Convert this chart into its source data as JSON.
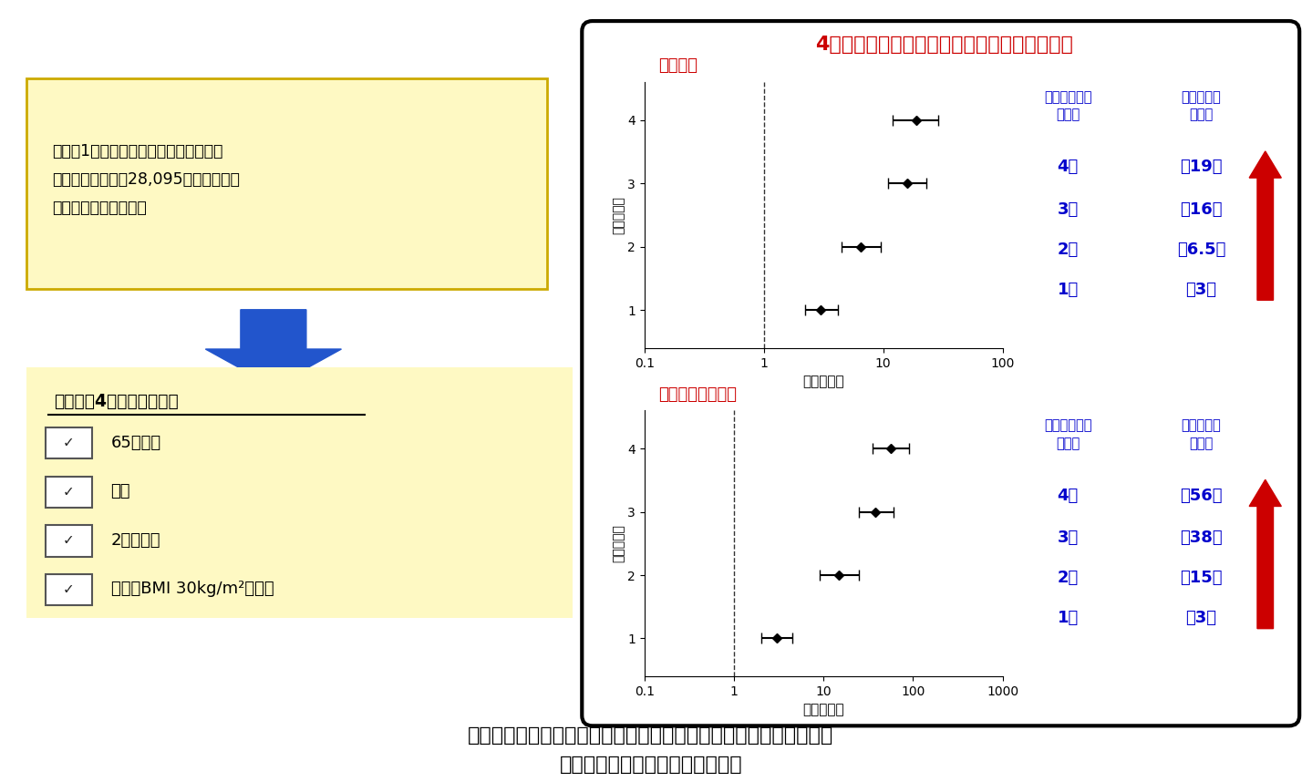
{
  "title_top": "4つのリスク因子が重なった時の危険性を解析",
  "left_box_text": "米国の1億人以上の診療記録が含まれる\nデータベースから28,095人の新型コロ\nナウイルス患者を解析",
  "risk_factors_title": "判明した4つのリスク因子",
  "risk_factors": [
    "65歳以上",
    "男性",
    "2型糖尿病",
    "肥満（BMI 30kg/m²以上）"
  ],
  "bottom_text_line1": "新型コロナウイルス感染時では、リスク因子の数が多くなるほど、",
  "bottom_text_line2": "入院や重症となる危険が高くなる",
  "plot1_title": "入院治療",
  "plot1_xlabel": "ハザード比",
  "plot1_ylabel": "リスクの数",
  "plot1_data": {
    "y": [
      1,
      2,
      3,
      4
    ],
    "x": [
      3.0,
      6.5,
      16.0,
      19.0
    ],
    "xerr_low": [
      2.2,
      4.5,
      11.0,
      12.0
    ],
    "xerr_high": [
      4.2,
      9.5,
      23.0,
      29.0
    ]
  },
  "plot1_counts": [
    "1個",
    "2個",
    "3個",
    "4個"
  ],
  "plot1_risks": [
    "約3倍",
    "約6.5倍",
    "約16倍",
    "約19倍"
  ],
  "plot1_col1_header": "リスク因子の\n該当数",
  "plot1_col2_header": "入院治療の\n危険性",
  "plot2_title": "クリティカルケア",
  "plot2_xlabel": "ハザード比",
  "plot2_ylabel": "リスクの数",
  "plot2_data": {
    "y": [
      1,
      2,
      3,
      4
    ],
    "x": [
      3.0,
      15.0,
      38.0,
      56.0
    ],
    "xerr_low": [
      2.0,
      9.0,
      25.0,
      35.0
    ],
    "xerr_high": [
      4.5,
      25.0,
      60.0,
      90.0
    ]
  },
  "plot2_counts": [
    "1個",
    "2個",
    "3個",
    "4個"
  ],
  "plot2_risks": [
    "約3倍",
    "約15倍",
    "約38倍",
    "約56倍"
  ],
  "plot2_col1_header": "リスク因子の\n該当数",
  "plot2_col2_header": "重症治療の\n危険性",
  "bg_color": "#ffffff",
  "left_box_bg": "#fef9c3",
  "risk_box_bg": "#fef9c3",
  "title_color": "#cc0000",
  "blue_color": "#0000cc",
  "red_color": "#cc0000",
  "border_color": "#000000",
  "arrow_color": "#2255cc"
}
